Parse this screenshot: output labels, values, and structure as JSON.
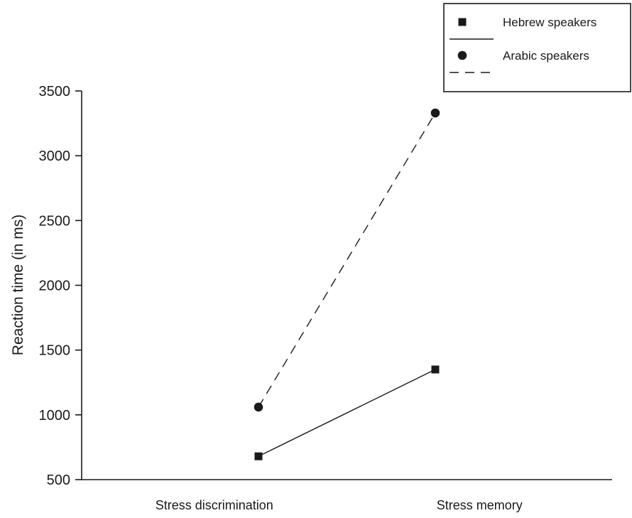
{
  "chart_data": {
    "type": "line",
    "title": "",
    "xlabel": "",
    "ylabel": "Reaction time (in ms)",
    "categories": [
      "Stress discrimination",
      "Stress memory"
    ],
    "ylim": [
      500,
      3500
    ],
    "yticks": [
      500,
      1000,
      1500,
      2000,
      2500,
      3000,
      3500
    ],
    "grid": false,
    "legend_position": "top-right",
    "series": [
      {
        "name": "Hebrew speakers",
        "marker": "square",
        "line_style": "solid",
        "values": [
          680,
          1350
        ]
      },
      {
        "name": "Arabic speakers",
        "marker": "circle",
        "line_style": "dashed",
        "values": [
          1060,
          3330
        ]
      }
    ],
    "colors": {
      "line": "#1a1a1a",
      "marker": "#1a1a1a",
      "axis": "#1a1a1a",
      "text": "#1a1a1a",
      "background": "#ffffff"
    }
  }
}
